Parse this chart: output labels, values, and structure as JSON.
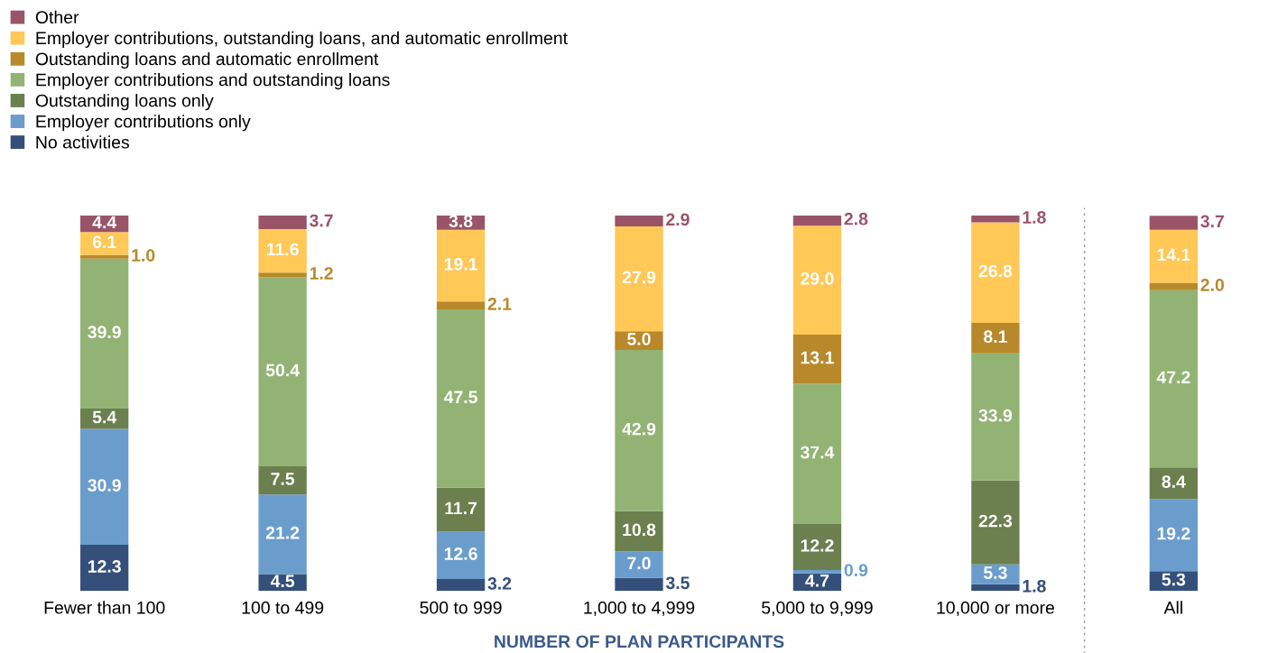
{
  "chart_data": {
    "type": "bar",
    "stacked": true,
    "xlabel": "NUMBER OF PLAN PARTICIPANTS",
    "categories": [
      "Fewer than 100",
      "100 to 499",
      "500 to 999",
      "1,000 to 4,999",
      "5,000 to 9,999",
      "10,000 or more",
      "All"
    ],
    "series": [
      {
        "name": "No activities",
        "color": "#34507a",
        "values": [
          12.3,
          4.5,
          3.2,
          3.5,
          4.7,
          1.8,
          5.3
        ],
        "value_labels": [
          "12.3",
          "4.5",
          "3.2",
          "3.5",
          "4.7",
          "1.8",
          "5.3"
        ]
      },
      {
        "name": "Employer contributions only",
        "color": "#6a9dcc",
        "values": [
          30.9,
          21.2,
          12.6,
          7.0,
          0.9,
          5.3,
          19.2
        ],
        "value_labels": [
          "30.9",
          "21.2",
          "12.6",
          "7.0",
          "0.9",
          "5.3",
          "19.2"
        ]
      },
      {
        "name": "Outstanding loans only",
        "color": "#6b7f4f",
        "values": [
          5.4,
          7.5,
          11.7,
          10.8,
          12.2,
          22.3,
          8.4
        ],
        "value_labels": [
          "5.4",
          "7.5",
          "11.7",
          "10.8",
          "12.2",
          "22.3",
          "8.4"
        ]
      },
      {
        "name": "Employer contributions and outstanding loans",
        "color": "#93b374",
        "values": [
          39.9,
          50.4,
          47.5,
          42.9,
          37.4,
          33.9,
          47.2
        ],
        "value_labels": [
          "39.9",
          "50.4",
          "47.5",
          "42.9",
          "37.4",
          "33.9",
          "47.2"
        ]
      },
      {
        "name": "Outstanding loans and automatic enrollment",
        "color": "#b8892a",
        "values": [
          1.0,
          1.2,
          2.1,
          5.0,
          13.1,
          8.1,
          2.0
        ],
        "value_labels": [
          "1.0",
          "1.2",
          "2.1",
          "5.0",
          "13.1",
          "8.1",
          "2.0"
        ]
      },
      {
        "name": "Employer contributions, outstanding loans, and automatic enrollment",
        "color": "#ffc857",
        "values": [
          6.1,
          11.6,
          19.1,
          27.9,
          29.0,
          26.8,
          14.1
        ],
        "value_labels": [
          "6.1",
          "11.6",
          "19.1",
          "27.9",
          "29.0",
          "26.8",
          "14.1"
        ]
      },
      {
        "name": "Other",
        "color": "#9a5468",
        "values": [
          4.4,
          3.7,
          3.8,
          2.9,
          2.8,
          1.8,
          3.7
        ],
        "value_labels": [
          "4.4",
          "3.7",
          "3.8",
          "2.9",
          "2.8",
          "1.8",
          "3.7"
        ]
      }
    ],
    "ylim": [
      0,
      100
    ],
    "tick_labels": "x",
    "legend": "top left",
    "grid": false
  }
}
